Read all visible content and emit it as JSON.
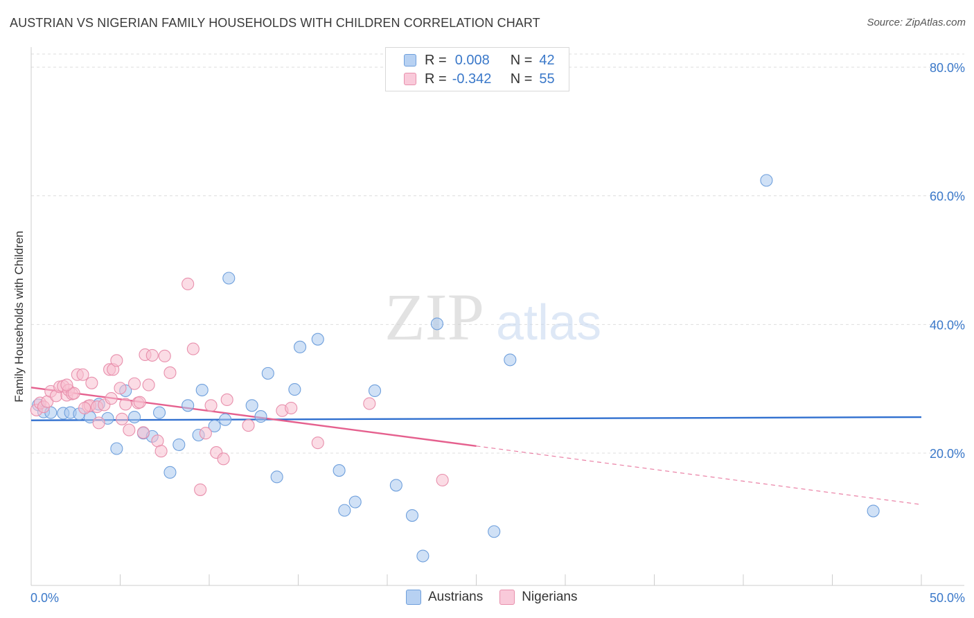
{
  "header": {
    "title": "AUSTRIAN VS NIGERIAN FAMILY HOUSEHOLDS WITH CHILDREN CORRELATION CHART",
    "source": "Source: ZipAtlas.com"
  },
  "legend": {
    "rows": [
      {
        "r_label": "R =",
        "r_value": "0.008",
        "n_label": "N =",
        "n_value": "42"
      },
      {
        "r_label": "R =",
        "r_value": "-0.342",
        "n_label": "N =",
        "n_value": "55"
      }
    ]
  },
  "bottom_legend": {
    "items": [
      {
        "label": "Austrians"
      },
      {
        "label": "Nigerians"
      }
    ]
  },
  "watermark": {
    "zip": "ZIP",
    "atlas": "atlas"
  },
  "colors": {
    "blue_fill": "#a9c8ef",
    "blue_stroke": "#6e9fdc",
    "blue_line": "#2f6fcf",
    "pink_fill": "#f7bfd0",
    "pink_stroke": "#e88fac",
    "pink_line": "#e5608e",
    "grid": "#dddddd",
    "tick_text": "#3a78c9"
  },
  "chart_data": {
    "type": "scatter",
    "title": "AUSTRIAN VS NIGERIAN FAMILY HOUSEHOLDS WITH CHILDREN CORRELATION CHART",
    "xlabel": "",
    "ylabel": "Family Households with Children",
    "xlim": [
      0,
      50
    ],
    "ylim": [
      0,
      84
    ],
    "x_tick_labels": [
      "0.0%",
      "50.0%"
    ],
    "y_ticks": [
      20,
      40,
      60,
      80
    ],
    "y_tick_labels": [
      "20.0%",
      "40.0%",
      "60.0%",
      "80.0%"
    ],
    "grid": true,
    "legend_position": "top-center",
    "series": [
      {
        "name": "Austrians",
        "color": "#a9c8ef",
        "points": [
          [
            0.4,
            27.5
          ],
          [
            0.7,
            26.4
          ],
          [
            1.1,
            26.3
          ],
          [
            1.8,
            26.2
          ],
          [
            2.2,
            26.3
          ],
          [
            2.7,
            26.1
          ],
          [
            3.3,
            25.6
          ],
          [
            3.8,
            27.6
          ],
          [
            4.3,
            25.4
          ],
          [
            4.8,
            20.7
          ],
          [
            5.3,
            29.7
          ],
          [
            5.8,
            25.6
          ],
          [
            6.3,
            23.1
          ],
          [
            6.8,
            22.6
          ],
          [
            7.2,
            26.3
          ],
          [
            7.8,
            17.0
          ],
          [
            8.3,
            21.3
          ],
          [
            8.8,
            27.4
          ],
          [
            9.4,
            22.8
          ],
          [
            9.6,
            29.8
          ],
          [
            10.3,
            24.2
          ],
          [
            10.9,
            25.2
          ],
          [
            11.1,
            47.2
          ],
          [
            12.4,
            27.4
          ],
          [
            12.9,
            25.7
          ],
          [
            13.3,
            32.4
          ],
          [
            13.8,
            16.3
          ],
          [
            14.8,
            29.9
          ],
          [
            15.1,
            36.5
          ],
          [
            16.1,
            37.7
          ],
          [
            17.3,
            17.3
          ],
          [
            17.6,
            11.1
          ],
          [
            18.2,
            12.4
          ],
          [
            19.3,
            29.7
          ],
          [
            20.5,
            15.0
          ],
          [
            21.4,
            10.3
          ],
          [
            22.0,
            4.0
          ],
          [
            22.8,
            40.1
          ],
          [
            26.0,
            7.8
          ],
          [
            26.9,
            34.5
          ],
          [
            41.3,
            62.4
          ],
          [
            47.3,
            11.0
          ]
        ]
      },
      {
        "name": "Nigerians",
        "color": "#f7bfd0",
        "points": [
          [
            0.3,
            26.7
          ],
          [
            0.5,
            27.8
          ],
          [
            0.7,
            27.2
          ],
          [
            0.9,
            28.0
          ],
          [
            1.1,
            29.6
          ],
          [
            1.4,
            28.9
          ],
          [
            1.6,
            30.3
          ],
          [
            1.8,
            30.4
          ],
          [
            2.0,
            29.0
          ],
          [
            2.1,
            29.8
          ],
          [
            2.3,
            29.2
          ],
          [
            2.4,
            29.3
          ],
          [
            2.6,
            32.2
          ],
          [
            2.9,
            32.2
          ],
          [
            3.2,
            27.3
          ],
          [
            3.3,
            27.4
          ],
          [
            3.4,
            30.9
          ],
          [
            3.7,
            27.2
          ],
          [
            3.8,
            24.7
          ],
          [
            4.1,
            27.5
          ],
          [
            4.4,
            33.0
          ],
          [
            4.6,
            33.0
          ],
          [
            4.5,
            28.5
          ],
          [
            4.8,
            34.4
          ],
          [
            5.0,
            30.1
          ],
          [
            5.1,
            25.3
          ],
          [
            5.3,
            27.6
          ],
          [
            5.5,
            23.6
          ],
          [
            5.8,
            30.8
          ],
          [
            6.0,
            27.8
          ],
          [
            6.1,
            27.9
          ],
          [
            6.3,
            23.2
          ],
          [
            6.4,
            35.3
          ],
          [
            6.6,
            30.6
          ],
          [
            6.8,
            35.2
          ],
          [
            7.1,
            21.9
          ],
          [
            7.3,
            20.3
          ],
          [
            7.5,
            35.1
          ],
          [
            7.8,
            32.5
          ],
          [
            8.8,
            46.3
          ],
          [
            9.1,
            36.2
          ],
          [
            9.5,
            14.3
          ],
          [
            9.8,
            23.1
          ],
          [
            10.1,
            27.4
          ],
          [
            10.4,
            20.1
          ],
          [
            10.8,
            19.1
          ],
          [
            11.0,
            28.3
          ],
          [
            12.2,
            24.3
          ],
          [
            14.1,
            26.6
          ],
          [
            14.6,
            27.0
          ],
          [
            16.1,
            21.6
          ],
          [
            19.0,
            27.7
          ],
          [
            23.1,
            15.8
          ],
          [
            3.0,
            27.0
          ],
          [
            2.0,
            30.6
          ]
        ]
      }
    ],
    "trend_lines": [
      {
        "series": "Austrians",
        "from": [
          0,
          25.1
        ],
        "to": [
          50,
          25.6
        ],
        "style": "solid"
      },
      {
        "series": "Nigerians",
        "from": [
          0,
          30.2
        ],
        "to": [
          25,
          21.1
        ],
        "style": "solid"
      },
      {
        "series": "Nigerians",
        "from": [
          25,
          21.1
        ],
        "to": [
          50,
          12.0
        ],
        "style": "dashed"
      }
    ]
  }
}
